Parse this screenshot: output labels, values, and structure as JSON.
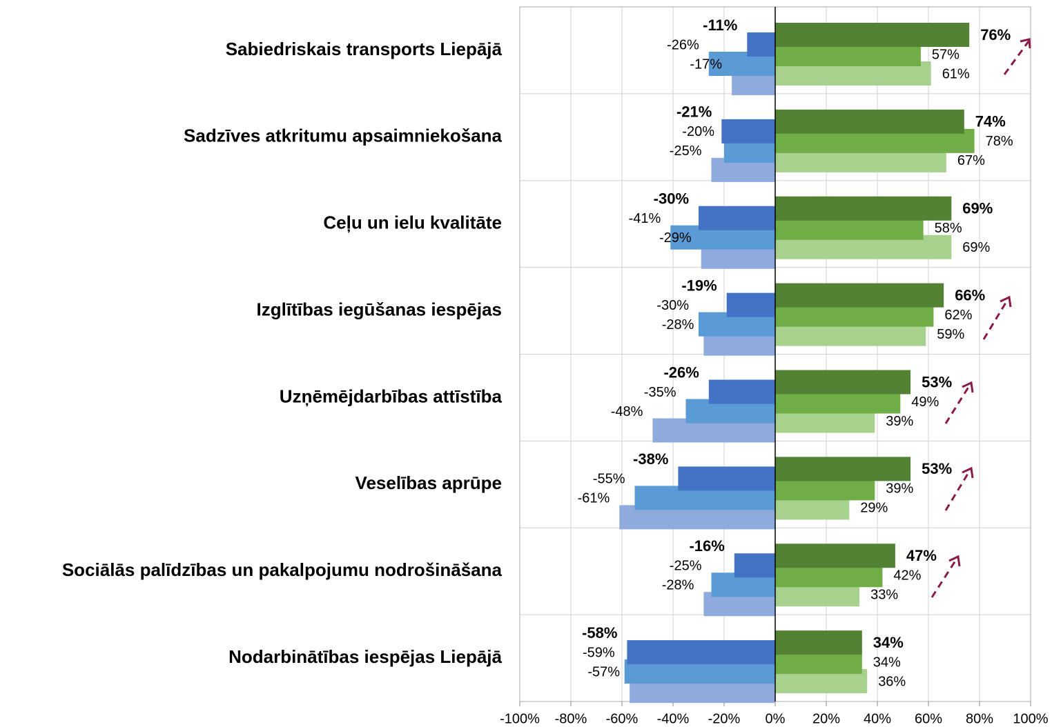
{
  "chart_data": {
    "type": "bar",
    "orientation": "horizontal",
    "categories": [
      "Sabiedriskais transports Liepājā",
      "Sadzīves atkritumu apsaimniekošana",
      "Ceļu un ielu kvalitāte",
      "Izglītības iegūšanas iespējas",
      "Uzņēmējdarbības attīstība",
      "Veselības aprūpe",
      "Sociālās palīdzības un pakalpojumu nodrošināšana",
      "Nodarbinātības iespējas Liepājā"
    ],
    "series": [
      {
        "color": "#4472c4",
        "label_weight": "bold",
        "values": [
          -11,
          -21,
          -30,
          -19,
          -26,
          -38,
          -16,
          -58
        ],
        "value_labels": [
          "-11%",
          "-21%",
          "-30%",
          "-19%",
          "-26%",
          "-38%",
          "-16%",
          "-58%"
        ]
      },
      {
        "color": "#5b9bd5",
        "label_weight": "normal",
        "values": [
          -26,
          -20,
          -41,
          -30,
          -35,
          -55,
          -25,
          -59
        ],
        "value_labels": [
          "-26%",
          "-20%",
          "-41%",
          "-30%",
          "-35%",
          "-55%",
          "-25%",
          "-59%"
        ]
      },
      {
        "color": "#8faadc",
        "label_weight": "normal",
        "values": [
          -17,
          -25,
          -29,
          -28,
          -48,
          -61,
          -28,
          -57
        ],
        "value_labels": [
          "-17%",
          "-25%",
          "-29%",
          "-28%",
          "-48%",
          "-61%",
          "-28%",
          "-57%"
        ]
      },
      {
        "color": "#548235",
        "label_weight": "bold",
        "values": [
          76,
          74,
          69,
          66,
          53,
          53,
          47,
          34
        ],
        "value_labels": [
          "76%",
          "74%",
          "69%",
          "66%",
          "53%",
          "53%",
          "47%",
          "34%"
        ]
      },
      {
        "color": "#70ad47",
        "label_weight": "normal",
        "values": [
          57,
          78,
          58,
          62,
          49,
          39,
          42,
          34
        ],
        "value_labels": [
          "57%",
          "78%",
          "58%",
          "62%",
          "49%",
          "39%",
          "42%",
          "34%"
        ]
      },
      {
        "color": "#a9d18e",
        "label_weight": "normal",
        "values": [
          61,
          67,
          69,
          59,
          39,
          29,
          33,
          36
        ],
        "value_labels": [
          "61%",
          "67%",
          "69%",
          "59%",
          "39%",
          "29%",
          "33%",
          "36%"
        ]
      }
    ],
    "xlim": [
      -100,
      100
    ],
    "xticks": [
      {
        "value": -100,
        "label": "-100%"
      },
      {
        "value": -80,
        "label": "-80%"
      },
      {
        "value": -60,
        "label": "-60%"
      },
      {
        "value": -40,
        "label": "-40%"
      },
      {
        "value": -20,
        "label": "-20%"
      },
      {
        "value": 0,
        "label": "0%"
      },
      {
        "value": 20,
        "label": "20%"
      },
      {
        "value": 40,
        "label": "40%"
      },
      {
        "value": 60,
        "label": "60%"
      },
      {
        "value": 80,
        "label": "80%"
      },
      {
        "value": 100,
        "label": "100%"
      }
    ],
    "grid": true
  }
}
